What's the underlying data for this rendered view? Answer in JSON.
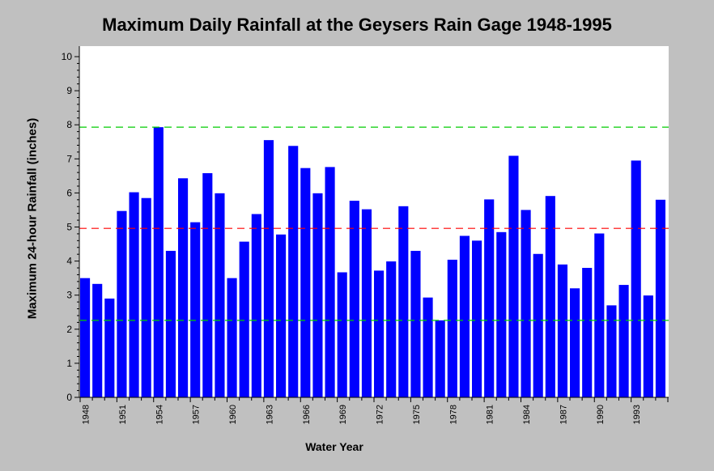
{
  "chart_data": {
    "type": "bar",
    "title": "Maximum Daily Rainfall at the Geysers Rain Gage 1948-1995",
    "xlabel": "Water Year",
    "ylabel": "Maximum 24-hour Rainfall (inches)",
    "ylim": [
      0,
      10
    ],
    "yticks": [
      "0",
      "1",
      "2",
      "3",
      "4",
      "5",
      "6",
      "7",
      "8",
      "9",
      "10"
    ],
    "xtick_labels": [
      "1948",
      "1951",
      "1954",
      "1957",
      "1960",
      "1963",
      "1966",
      "1969",
      "1972",
      "1975",
      "1978",
      "1981",
      "1984",
      "1987",
      "1990",
      "1993"
    ],
    "categories": [
      1948,
      1949,
      1950,
      1951,
      1952,
      1953,
      1954,
      1955,
      1956,
      1957,
      1958,
      1959,
      1960,
      1961,
      1962,
      1963,
      1964,
      1965,
      1966,
      1967,
      1968,
      1969,
      1970,
      1971,
      1972,
      1973,
      1974,
      1975,
      1976,
      1977,
      1978,
      1979,
      1980,
      1981,
      1982,
      1983,
      1984,
      1985,
      1986,
      1987,
      1988,
      1989,
      1990,
      1991,
      1992,
      1993,
      1994,
      1995
    ],
    "values": [
      3.5,
      3.33,
      2.9,
      5.47,
      6.02,
      5.85,
      7.93,
      4.3,
      6.43,
      5.14,
      6.58,
      5.99,
      3.5,
      4.57,
      5.38,
      7.55,
      4.78,
      7.38,
      6.73,
      5.99,
      6.76,
      3.67,
      5.77,
      5.52,
      3.72,
      3.99,
      5.61,
      4.3,
      2.93,
      2.26,
      4.04,
      4.74,
      4.6,
      5.81,
      4.85,
      7.09,
      5.5,
      4.21,
      5.91,
      3.9,
      3.2,
      3.8,
      4.81,
      2.7,
      3.3,
      6.95,
      2.99,
      5.8
    ],
    "bar_color": "#0000ff",
    "reference_lines": [
      {
        "value": 7.93,
        "color": "#00cc00"
      },
      {
        "value": 4.96,
        "color": "#ff0000"
      },
      {
        "value": 2.26,
        "color": "#00cc00"
      }
    ],
    "grid": false,
    "plot_background": "#ffffff"
  }
}
